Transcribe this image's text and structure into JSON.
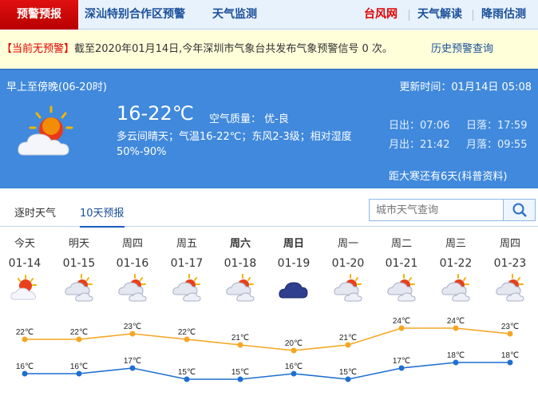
{
  "nav": {
    "active": "预警预报",
    "items": [
      "深汕特别合作区预警",
      "天气监测"
    ],
    "right": [
      {
        "label": "台风网",
        "color": "#e00000"
      },
      {
        "label": "天气解读",
        "color": "#1a4f9a"
      },
      {
        "label": "降雨估测",
        "color": "#1a4f9a"
      }
    ]
  },
  "alert": {
    "tag": "【当前无预警】",
    "text": "截至2020年01月14日,今年深圳市气象台共发布气象预警信号 0 次。",
    "history_link": "历史预警查询"
  },
  "today": {
    "period": "早上至傍晚(06-20时)",
    "update": "更新时间：01月14日 05:08",
    "temp": "16-22℃",
    "aqi": "空气质量： 优-良",
    "desc": "多云间晴天；气温16-22℃；东风2-3级；相对湿度50%-90%",
    "sunrise": "日出：07:06",
    "sunset": "日落：17:59",
    "moonrise": "月出：21:42",
    "moonset": "月落：09:55",
    "solar_term": "距大寒还有6天(科普资料)",
    "icon": "partly-cloudy-sun"
  },
  "tabs": [
    "逐时天气",
    "10天预报"
  ],
  "search": {
    "placeholder": "城市天气查询"
  },
  "forecast": [
    {
      "week": "今天",
      "date": "01-14",
      "icon": "partly-cloudy",
      "bold": false
    },
    {
      "week": "明天",
      "date": "01-15",
      "icon": "cloudy-sun",
      "bold": false
    },
    {
      "week": "周四",
      "date": "01-16",
      "icon": "cloudy-sun",
      "bold": false
    },
    {
      "week": "周五",
      "date": "01-17",
      "icon": "cloudy-sun",
      "bold": false
    },
    {
      "week": "周六",
      "date": "01-18",
      "icon": "cloudy-sun",
      "bold": true
    },
    {
      "week": "周日",
      "date": "01-19",
      "icon": "overcast",
      "bold": true
    },
    {
      "week": "周一",
      "date": "01-20",
      "icon": "cloudy-sun",
      "bold": false
    },
    {
      "week": "周二",
      "date": "01-21",
      "icon": "cloudy-sun",
      "bold": false
    },
    {
      "week": "周三",
      "date": "01-22",
      "icon": "cloudy-sun",
      "bold": false
    },
    {
      "week": "周四",
      "date": "01-23",
      "icon": "cloudy-sun",
      "bold": false
    }
  ],
  "chart_data": {
    "type": "line",
    "categories": [
      "01-14",
      "01-15",
      "01-16",
      "01-17",
      "01-18",
      "01-19",
      "01-20",
      "01-21",
      "01-22",
      "01-23"
    ],
    "unit": "℃",
    "series": [
      {
        "values": [
          22,
          22,
          23,
          22,
          21,
          20,
          21,
          24,
          24,
          23
        ],
        "color": "#f5a623"
      },
      {
        "values": [
          16,
          16,
          17,
          15,
          15,
          16,
          15,
          17,
          18,
          18
        ],
        "color": "#1f6fd0"
      }
    ]
  }
}
